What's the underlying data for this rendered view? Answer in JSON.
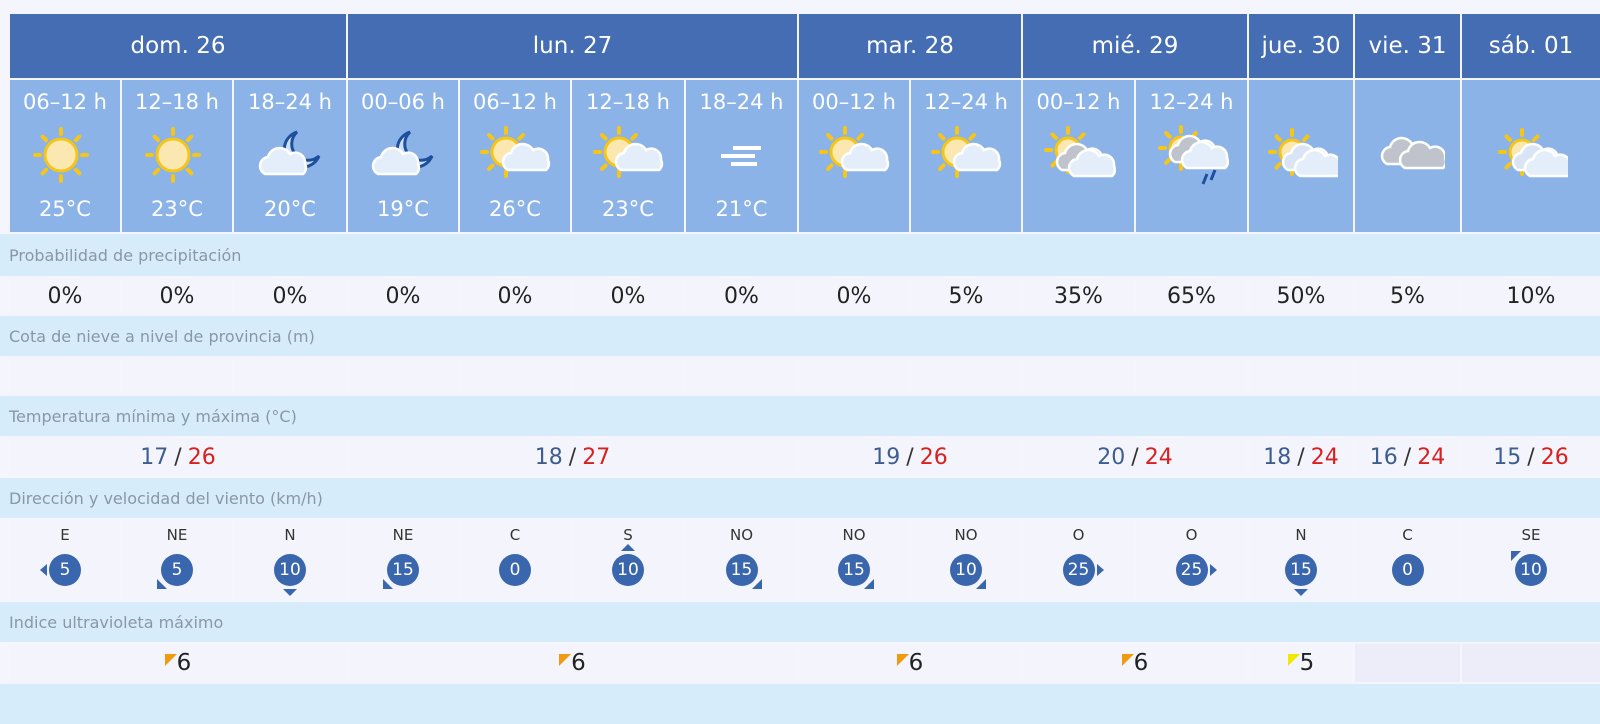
{
  "days": [
    {
      "label": "dom. 26",
      "span": 3,
      "tmin": "17",
      "tmax": "26",
      "uv": "6",
      "uv_color": "#f09a0f"
    },
    {
      "label": "lun. 27",
      "span": 4,
      "tmin": "18",
      "tmax": "27",
      "uv": "6",
      "uv_color": "#f09a0f"
    },
    {
      "label": "mar. 28",
      "span": 2,
      "tmin": "19",
      "tmax": "26",
      "uv": "6",
      "uv_color": "#f09a0f"
    },
    {
      "label": "mié. 29",
      "span": 2,
      "tmin": "20",
      "tmax": "24",
      "uv": "6",
      "uv_color": "#f09a0f"
    },
    {
      "label": "jue. 30",
      "span": 1,
      "tmin": "18",
      "tmax": "24",
      "uv": "5",
      "uv_color": "#f0e800"
    },
    {
      "label": "vie. 31",
      "span": 1,
      "tmin": "16",
      "tmax": "24",
      "uv": "",
      "uv_color": ""
    },
    {
      "label": "sáb. 01",
      "span": 1,
      "tmin": "15",
      "tmax": "26",
      "uv": "",
      "uv_color": ""
    }
  ],
  "slots": [
    {
      "time": "06–12 h",
      "icon": "sun",
      "temp": "25°C",
      "prob": "0%",
      "wind_dir": "E",
      "wind_speed": "5"
    },
    {
      "time": "12–18 h",
      "icon": "sun",
      "temp": "23°C",
      "prob": "0%",
      "wind_dir": "NE",
      "wind_speed": "5"
    },
    {
      "time": "18–24 h",
      "icon": "moon-cloud",
      "temp": "20°C",
      "prob": "0%",
      "wind_dir": "N",
      "wind_speed": "10"
    },
    {
      "time": "00–06 h",
      "icon": "moon-cloud",
      "temp": "19°C",
      "prob": "0%",
      "wind_dir": "NE",
      "wind_speed": "15"
    },
    {
      "time": "06–12 h",
      "icon": "sun-cloud",
      "temp": "26°C",
      "prob": "0%",
      "wind_dir": "C",
      "wind_speed": "0"
    },
    {
      "time": "12–18 h",
      "icon": "sun-cloud",
      "temp": "23°C",
      "prob": "0%",
      "wind_dir": "S",
      "wind_speed": "10"
    },
    {
      "time": "18–24 h",
      "icon": "fog",
      "temp": "21°C",
      "prob": "0%",
      "wind_dir": "NO",
      "wind_speed": "15"
    },
    {
      "time": "00–12 h",
      "icon": "sun-cloud",
      "temp": "",
      "prob": "0%",
      "wind_dir": "NO",
      "wind_speed": "15"
    },
    {
      "time": "12–24 h",
      "icon": "sun-cloud",
      "temp": "",
      "prob": "5%",
      "wind_dir": "NO",
      "wind_speed": "10"
    },
    {
      "time": "00–12 h",
      "icon": "sun-clouds",
      "temp": "",
      "prob": "35%",
      "wind_dir": "O",
      "wind_speed": "25"
    },
    {
      "time": "12–24 h",
      "icon": "sun-rain",
      "temp": "",
      "prob": "65%",
      "wind_dir": "O",
      "wind_speed": "25"
    },
    {
      "time": "",
      "icon": "sun-cloud-pale",
      "temp": "",
      "prob": "50%",
      "wind_dir": "N",
      "wind_speed": "15"
    },
    {
      "time": "",
      "icon": "cloudy",
      "temp": "",
      "prob": "5%",
      "wind_dir": "C",
      "wind_speed": "0"
    },
    {
      "time": "",
      "icon": "sun-cloud-pale",
      "temp": "",
      "prob": "10%",
      "wind_dir": "SE",
      "wind_speed": "10"
    }
  ],
  "labels": {
    "precip": "Probabilidad de precipitación",
    "snow": "Cota de nieve a nivel de provincia (m)",
    "temp": "Temperatura mínima y máxima (°C)",
    "wind": "Dirección y velocidad del viento (km/h)",
    "uv": "Indice ultravioleta máximo",
    "temp_sep": "/"
  },
  "colors": {
    "header": "#456db3",
    "slot": "#8cb3e8",
    "label_band": "#d6ecfb",
    "temp_min": "#3e5d8f",
    "temp_max": "#d92020",
    "wind_bubble": "#3a66ad"
  }
}
